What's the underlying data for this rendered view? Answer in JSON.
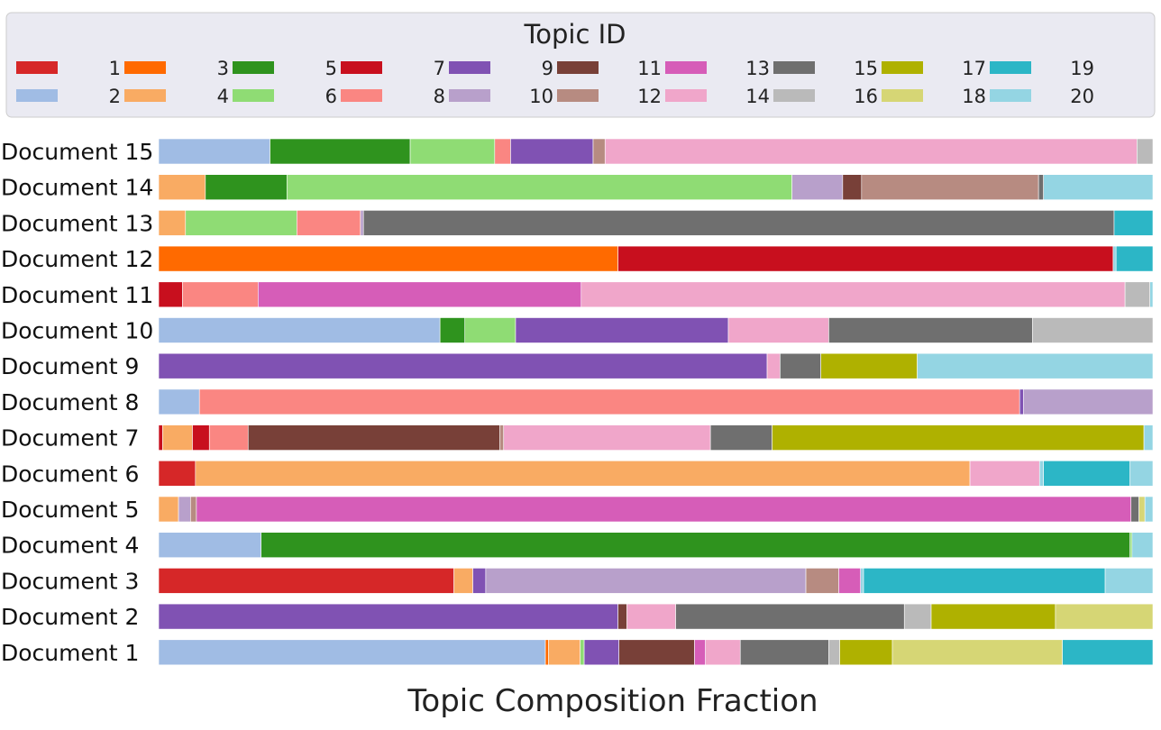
{
  "chart_data": {
    "type": "bar",
    "orientation": "horizontal-stacked",
    "title": "",
    "xlabel": "Topic Composition Fraction",
    "ylabel": "",
    "xlim": [
      0,
      1
    ],
    "grid": false,
    "legend": {
      "title": "Topic ID",
      "placement": "top",
      "columns": 10
    },
    "topics": [
      {
        "id": "1",
        "color": "#d62728"
      },
      {
        "id": "2",
        "color": "#a0bce4"
      },
      {
        "id": "3",
        "color": "#ff6a00"
      },
      {
        "id": "4",
        "color": "#f9ab63"
      },
      {
        "id": "5",
        "color": "#2f931e"
      },
      {
        "id": "6",
        "color": "#8fdc74"
      },
      {
        "id": "7",
        "color": "#c80f1e"
      },
      {
        "id": "8",
        "color": "#fa8682"
      },
      {
        "id": "9",
        "color": "#8052b3"
      },
      {
        "id": "10",
        "color": "#b8a0cb"
      },
      {
        "id": "11",
        "color": "#784038"
      },
      {
        "id": "12",
        "color": "#b78b81"
      },
      {
        "id": "13",
        "color": "#d65db8"
      },
      {
        "id": "14",
        "color": "#f0a6ca"
      },
      {
        "id": "15",
        "color": "#6f6f6f"
      },
      {
        "id": "16",
        "color": "#bababa"
      },
      {
        "id": "17",
        "color": "#afb100"
      },
      {
        "id": "18",
        "color": "#d6d675"
      },
      {
        "id": "19",
        "color": "#2cb6c6"
      },
      {
        "id": "20",
        "color": "#94d5e3"
      }
    ],
    "categories": [
      "Document 15",
      "Document 14",
      "Document 13",
      "Document 12",
      "Document 11",
      "Document 10",
      "Document 9",
      "Document 8",
      "Document 7",
      "Document 6",
      "Document 5",
      "Document 4",
      "Document 3",
      "Document 2",
      "Document 1"
    ],
    "documents": [
      {
        "name": "Document 15",
        "segments": [
          {
            "topic": "2",
            "value": 0.112
          },
          {
            "topic": "5",
            "value": 0.141
          },
          {
            "topic": "6",
            "value": 0.085
          },
          {
            "topic": "8",
            "value": 0.016
          },
          {
            "topic": "9",
            "value": 0.083
          },
          {
            "topic": "12",
            "value": 0.012
          },
          {
            "topic": "14",
            "value": 0.535
          },
          {
            "topic": "16",
            "value": 0.016
          }
        ]
      },
      {
        "name": "Document 14",
        "segments": [
          {
            "topic": "4",
            "value": 0.047
          },
          {
            "topic": "5",
            "value": 0.082
          },
          {
            "topic": "6",
            "value": 0.508
          },
          {
            "topic": "10",
            "value": 0.051
          },
          {
            "topic": "11",
            "value": 0.019
          },
          {
            "topic": "12",
            "value": 0.178
          },
          {
            "topic": "15",
            "value": 0.005
          },
          {
            "topic": "20",
            "value": 0.11
          }
        ]
      },
      {
        "name": "Document 13",
        "segments": [
          {
            "topic": "4",
            "value": 0.027
          },
          {
            "topic": "6",
            "value": 0.112
          },
          {
            "topic": "8",
            "value": 0.064
          },
          {
            "topic": "10",
            "value": 0.003
          },
          {
            "topic": "15",
            "value": 0.755
          },
          {
            "topic": "19",
            "value": 0.039
          }
        ]
      },
      {
        "name": "Document 12",
        "segments": [
          {
            "topic": "3",
            "value": 0.462
          },
          {
            "topic": "7",
            "value": 0.498
          },
          {
            "topic": "20",
            "value": 0.003
          },
          {
            "topic": "19",
            "value": 0.037
          }
        ]
      },
      {
        "name": "Document 11",
        "segments": [
          {
            "topic": "7",
            "value": 0.024
          },
          {
            "topic": "8",
            "value": 0.076
          },
          {
            "topic": "13",
            "value": 0.325
          },
          {
            "topic": "14",
            "value": 0.547
          },
          {
            "topic": "16",
            "value": 0.025
          },
          {
            "topic": "20",
            "value": 0.003
          }
        ]
      },
      {
        "name": "Document 10",
        "segments": [
          {
            "topic": "2",
            "value": 0.283
          },
          {
            "topic": "5",
            "value": 0.025
          },
          {
            "topic": "6",
            "value": 0.051
          },
          {
            "topic": "9",
            "value": 0.214
          },
          {
            "topic": "14",
            "value": 0.101
          },
          {
            "topic": "15",
            "value": 0.205
          },
          {
            "topic": "16",
            "value": 0.121
          }
        ]
      },
      {
        "name": "Document 9",
        "segments": [
          {
            "topic": "9",
            "value": 0.612
          },
          {
            "topic": "14",
            "value": 0.013
          },
          {
            "topic": "15",
            "value": 0.041
          },
          {
            "topic": "17",
            "value": 0.097
          },
          {
            "topic": "20",
            "value": 0.237
          }
        ]
      },
      {
        "name": "Document 8",
        "segments": [
          {
            "topic": "2",
            "value": 0.041
          },
          {
            "topic": "8",
            "value": 0.825
          },
          {
            "topic": "9",
            "value": 0.004
          },
          {
            "topic": "10",
            "value": 0.13
          }
        ]
      },
      {
        "name": "Document 7",
        "segments": [
          {
            "topic": "7",
            "value": 0.004
          },
          {
            "topic": "4",
            "value": 0.03
          },
          {
            "topic": "7",
            "value": 0.017
          },
          {
            "topic": "8",
            "value": 0.039
          },
          {
            "topic": "11",
            "value": 0.253
          },
          {
            "topic": "12",
            "value": 0.004
          },
          {
            "topic": "14",
            "value": 0.208
          },
          {
            "topic": "15",
            "value": 0.062
          },
          {
            "topic": "17",
            "value": 0.374
          },
          {
            "topic": "20",
            "value": 0.009
          }
        ]
      },
      {
        "name": "Document 6",
        "segments": [
          {
            "topic": "1",
            "value": 0.037
          },
          {
            "topic": "4",
            "value": 0.779
          },
          {
            "topic": "14",
            "value": 0.07
          },
          {
            "topic": "20",
            "value": 0.004
          },
          {
            "topic": "19",
            "value": 0.087
          },
          {
            "topic": "20",
            "value": 0.023
          }
        ]
      },
      {
        "name": "Document 5",
        "segments": [
          {
            "topic": "4",
            "value": 0.02
          },
          {
            "topic": "10",
            "value": 0.012
          },
          {
            "topic": "12",
            "value": 0.006
          },
          {
            "topic": "13",
            "value": 0.94
          },
          {
            "topic": "15",
            "value": 0.008
          },
          {
            "topic": "18",
            "value": 0.006
          },
          {
            "topic": "20",
            "value": 0.008
          }
        ]
      },
      {
        "name": "Document 4",
        "segments": [
          {
            "topic": "2",
            "value": 0.103
          },
          {
            "topic": "5",
            "value": 0.874
          },
          {
            "topic": "6",
            "value": 0.002
          },
          {
            "topic": "20",
            "value": 0.021
          }
        ]
      },
      {
        "name": "Document 3",
        "segments": [
          {
            "topic": "1",
            "value": 0.297
          },
          {
            "topic": "4",
            "value": 0.019
          },
          {
            "topic": "9",
            "value": 0.013
          },
          {
            "topic": "10",
            "value": 0.322
          },
          {
            "topic": "12",
            "value": 0.033
          },
          {
            "topic": "13",
            "value": 0.022
          },
          {
            "topic": "20",
            "value": 0.003
          },
          {
            "topic": "19",
            "value": 0.243
          },
          {
            "topic": "20",
            "value": 0.048
          }
        ]
      },
      {
        "name": "Document 2",
        "segments": [
          {
            "topic": "9",
            "value": 0.462
          },
          {
            "topic": "11",
            "value": 0.009
          },
          {
            "topic": "14",
            "value": 0.049
          },
          {
            "topic": "15",
            "value": 0.23
          },
          {
            "topic": "16",
            "value": 0.027
          },
          {
            "topic": "17",
            "value": 0.125
          },
          {
            "topic": "18",
            "value": 0.098
          }
        ]
      },
      {
        "name": "Document 1",
        "segments": [
          {
            "topic": "2",
            "value": 0.389
          },
          {
            "topic": "3",
            "value": 0.003
          },
          {
            "topic": "4",
            "value": 0.032
          },
          {
            "topic": "6",
            "value": 0.004
          },
          {
            "topic": "9",
            "value": 0.035
          },
          {
            "topic": "11",
            "value": 0.076
          },
          {
            "topic": "13",
            "value": 0.011
          },
          {
            "topic": "14",
            "value": 0.035
          },
          {
            "topic": "15",
            "value": 0.089
          },
          {
            "topic": "16",
            "value": 0.011
          },
          {
            "topic": "17",
            "value": 0.053
          },
          {
            "topic": "18",
            "value": 0.171
          },
          {
            "topic": "19",
            "value": 0.091
          }
        ]
      }
    ]
  }
}
